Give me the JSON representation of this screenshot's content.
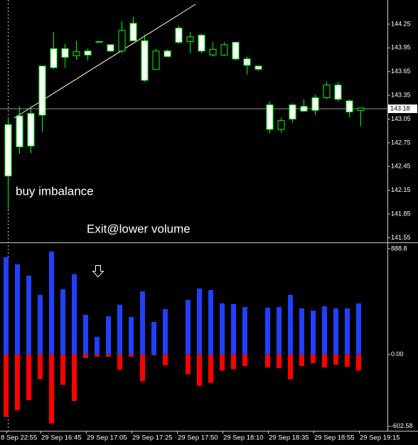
{
  "chart_data": [
    {
      "type": "candlestick",
      "ylim": [
        141.5,
        144.555
      ],
      "yticks": [
        144.25,
        143.95,
        143.65,
        143.35,
        143.05,
        142.75,
        142.45,
        142.15,
        141.85,
        141.55
      ],
      "price_line": 143.18,
      "up_color": "#000000",
      "down_color": "#ffffff",
      "wick_color": "#00ff00",
      "annotations": [
        {
          "text": "buy imbalance"
        },
        {
          "text": "Exit@lower volume"
        }
      ],
      "open": [
        142.98,
        143.09,
        143.12,
        143.72,
        143.94,
        143.94,
        143.85,
        143.91,
        144.03,
        143.99,
        143.91,
        144.26,
        144.04,
        143.68,
        143.91,
        144.2,
        144.03,
        144.11,
        143.86,
        143.86,
        144.02,
        143.81,
        143.72,
        143.23,
        142.92,
        143.23,
        143.21,
        143.32,
        143.32,
        143.48,
        143.28,
        143.16
      ],
      "high": [
        143.07,
        143.21,
        143.21,
        143.72,
        144.15,
        144.0,
        144.04,
        143.94,
        144.03,
        143.99,
        144.29,
        144.34,
        144.12,
        143.94,
        143.93,
        144.23,
        144.15,
        144.13,
        144.02,
        144.02,
        144.02,
        143.84,
        143.72,
        143.27,
        143.07,
        143.25,
        143.3,
        143.36,
        143.52,
        143.52,
        143.3,
        143.19
      ],
      "low": [
        141.91,
        142.61,
        142.62,
        142.89,
        143.68,
        143.7,
        143.8,
        143.79,
        144.03,
        143.9,
        143.88,
        144.04,
        143.52,
        143.68,
        143.84,
        144.0,
        143.88,
        143.88,
        143.84,
        143.85,
        143.79,
        143.61,
        143.66,
        142.87,
        142.88,
        143.01,
        143.14,
        143.1,
        143.3,
        143.27,
        143.07,
        142.96
      ],
      "close": [
        142.33,
        142.7,
        142.71,
        143.1,
        143.7,
        143.83,
        143.9,
        143.86,
        144.03,
        143.91,
        144.17,
        144.04,
        143.54,
        143.91,
        143.84,
        144.02,
        144.09,
        143.91,
        143.93,
        143.99,
        143.81,
        143.73,
        143.68,
        142.92,
        143.03,
        143.05,
        143.15,
        143.16,
        143.48,
        143.3,
        143.14,
        143.19
      ]
    },
    {
      "type": "bar",
      "categories": [
        "8 Sep 22:55",
        null,
        null,
        "29 Sep 16:45",
        null,
        null,
        null,
        "29 Sep 17:05",
        null,
        null,
        null,
        "29 Sep 17:25",
        null,
        null,
        null,
        "29 Sep 17:50",
        null,
        null,
        null,
        "29 Sep 18:10",
        null,
        null,
        null,
        "29 Sep 18:35",
        null,
        null,
        null,
        "29 Sep 18:55",
        null,
        null,
        null,
        "29 Sep 19:15"
      ],
      "ylim": [
        -640,
        930
      ],
      "yticks": [
        888.8,
        {
          "value": 0,
          "label": "0.00"
        },
        -602.58
      ],
      "series": [
        {
          "color": "#2040ff",
          "values": [
            818,
            758,
            663,
            501,
            866,
            549,
            675,
            334,
            149,
            322,
            418,
            316,
            531,
            275,
            382,
            null,
            460,
            555,
            543,
            430,
            424,
            400,
            null,
            394,
            400,
            501,
            388,
            370,
            406,
            388,
            388,
            430
          ]
        },
        {
          "color": "#ff0000",
          "values": [
            -523,
            -468,
            -383,
            -207,
            -578,
            -255,
            -389,
            -30,
            -18,
            -18,
            -128,
            -18,
            -225,
            -6,
            -91,
            null,
            -164,
            -261,
            -237,
            -134,
            -122,
            -97,
            null,
            -109,
            -116,
            -207,
            -97,
            -73,
            -109,
            -85,
            -103,
            -134
          ]
        }
      ]
    }
  ]
}
